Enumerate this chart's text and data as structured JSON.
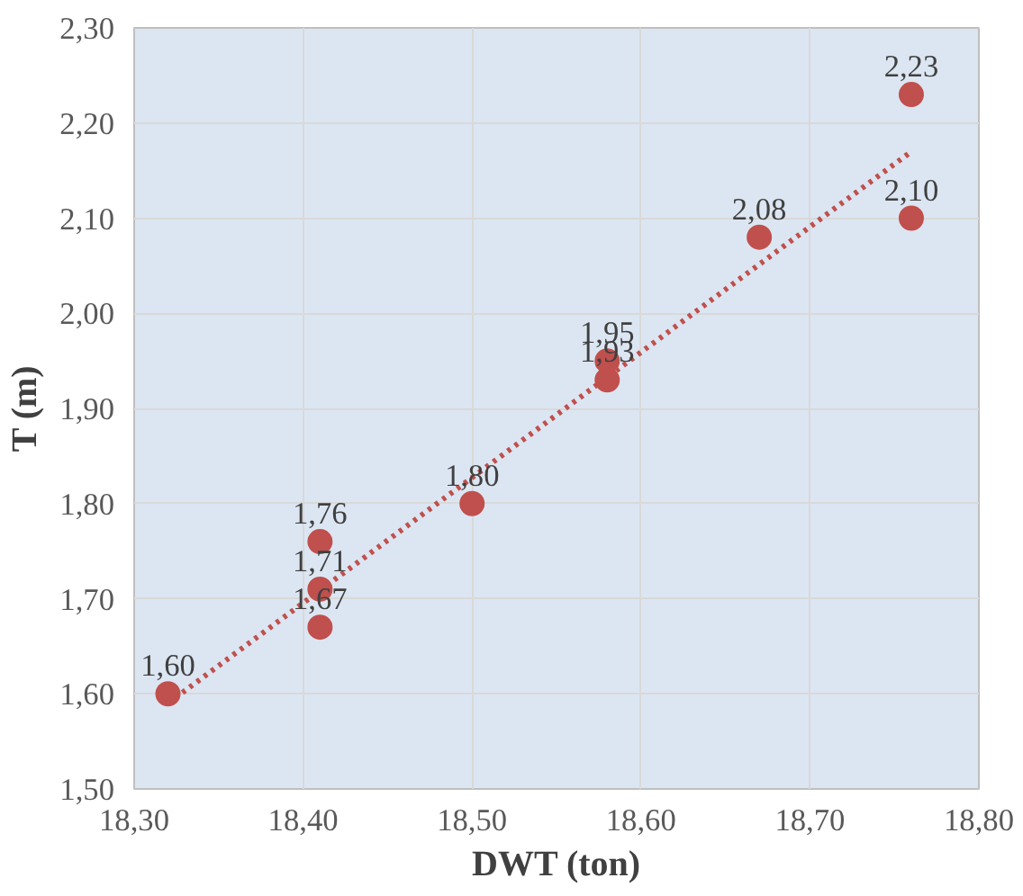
{
  "chart_data": {
    "type": "scatter",
    "xlabel": "DWT (ton)",
    "ylabel": "T (m)",
    "xlim": [
      18.3,
      18.8
    ],
    "xticks": [
      {
        "value": 18.3,
        "label": "18,30"
      },
      {
        "value": 18.4,
        "label": "18,40"
      },
      {
        "value": 18.5,
        "label": "18,50"
      },
      {
        "value": 18.6,
        "label": "18,60"
      },
      {
        "value": 18.7,
        "label": "18,70"
      },
      {
        "value": 18.8,
        "label": "18,80"
      }
    ],
    "ylim": [
      1.5,
      2.3
    ],
    "yticks": [
      {
        "value": 1.5,
        "label": "1,50"
      },
      {
        "value": 1.6,
        "label": "1,60"
      },
      {
        "value": 1.7,
        "label": "1,70"
      },
      {
        "value": 1.8,
        "label": "1,80"
      },
      {
        "value": 1.9,
        "label": "1,90"
      },
      {
        "value": 2.0,
        "label": "2,00"
      },
      {
        "value": 2.1,
        "label": "2,10"
      },
      {
        "value": 2.2,
        "label": "2,20"
      },
      {
        "value": 2.3,
        "label": "2,30"
      }
    ],
    "grid": true,
    "marker": "circle",
    "series": [
      {
        "color": "#c0504d",
        "x": [
          18.32,
          18.41,
          18.41,
          18.41,
          18.5,
          18.58,
          18.58,
          18.67,
          18.76,
          18.76
        ],
        "values": [
          1.6,
          1.67,
          1.71,
          1.76,
          1.8,
          1.93,
          1.95,
          2.08,
          2.1,
          2.23
        ],
        "value_labels": [
          "1,60",
          "1,67",
          "1,71",
          "1,76",
          "1,80",
          "1,93",
          "1,95",
          "2,08",
          "2,10",
          "2,23"
        ]
      },
      {
        "type": "line",
        "color": "#c0504d",
        "line_style": "dotted",
        "marker": "none",
        "x": [
          18.32,
          18.76
        ],
        "values": [
          1.59,
          2.17
        ]
      }
    ]
  }
}
